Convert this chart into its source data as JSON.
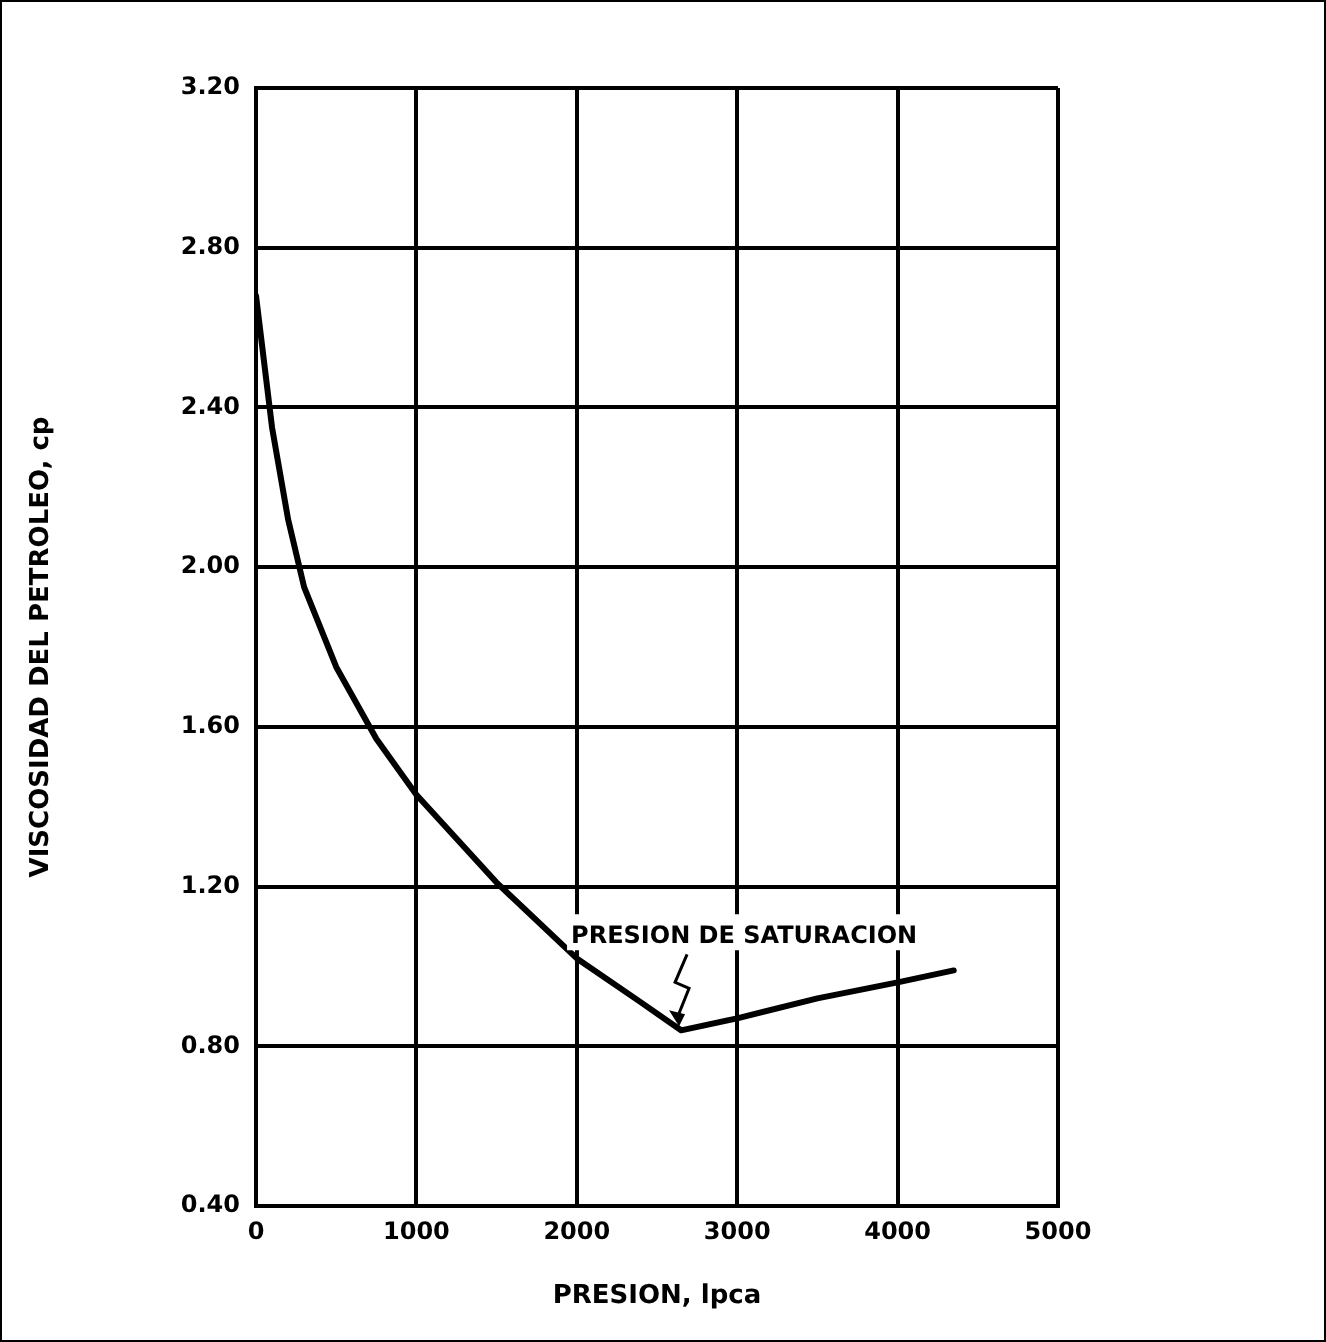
{
  "chart_data": {
    "type": "line",
    "xlabel": "PRESION, lpca",
    "ylabel": "VISCOSIDAD DEL PETROLEO, cp",
    "x": [
      0,
      100,
      200,
      300,
      500,
      750,
      1000,
      1500,
      2000,
      2400,
      2650,
      3000,
      3500,
      4000,
      4350
    ],
    "series": [
      {
        "color": "#000000",
        "values": [
          2.68,
          2.35,
          2.12,
          1.95,
          1.75,
          1.57,
          1.43,
          1.21,
          1.02,
          0.91,
          0.84,
          0.87,
          0.92,
          0.96,
          0.99
        ]
      }
    ],
    "xlim": [
      0,
      5000
    ],
    "xticks": [
      0,
      1000,
      2000,
      3000,
      4000,
      5000
    ],
    "ylim": [
      0.4,
      3.2
    ],
    "yticks": [
      {
        "value": 0.4,
        "label": "0.40"
      },
      {
        "value": 0.8,
        "label": "0.80"
      },
      {
        "value": 1.2,
        "label": "1.20"
      },
      {
        "value": 1.6,
        "label": "1.60"
      },
      {
        "value": 2.0,
        "label": "2.00"
      },
      {
        "value": 2.4,
        "label": "2.40"
      },
      {
        "value": 2.8,
        "label": "2.80"
      },
      {
        "value": 3.2,
        "label": "3.20"
      }
    ],
    "grid": true,
    "marker": "none",
    "line_style": "solid",
    "legend": false,
    "annotations": [
      {
        "text": "PRESION DE SATURACION",
        "x": 2650,
        "y": 0.84
      }
    ]
  }
}
